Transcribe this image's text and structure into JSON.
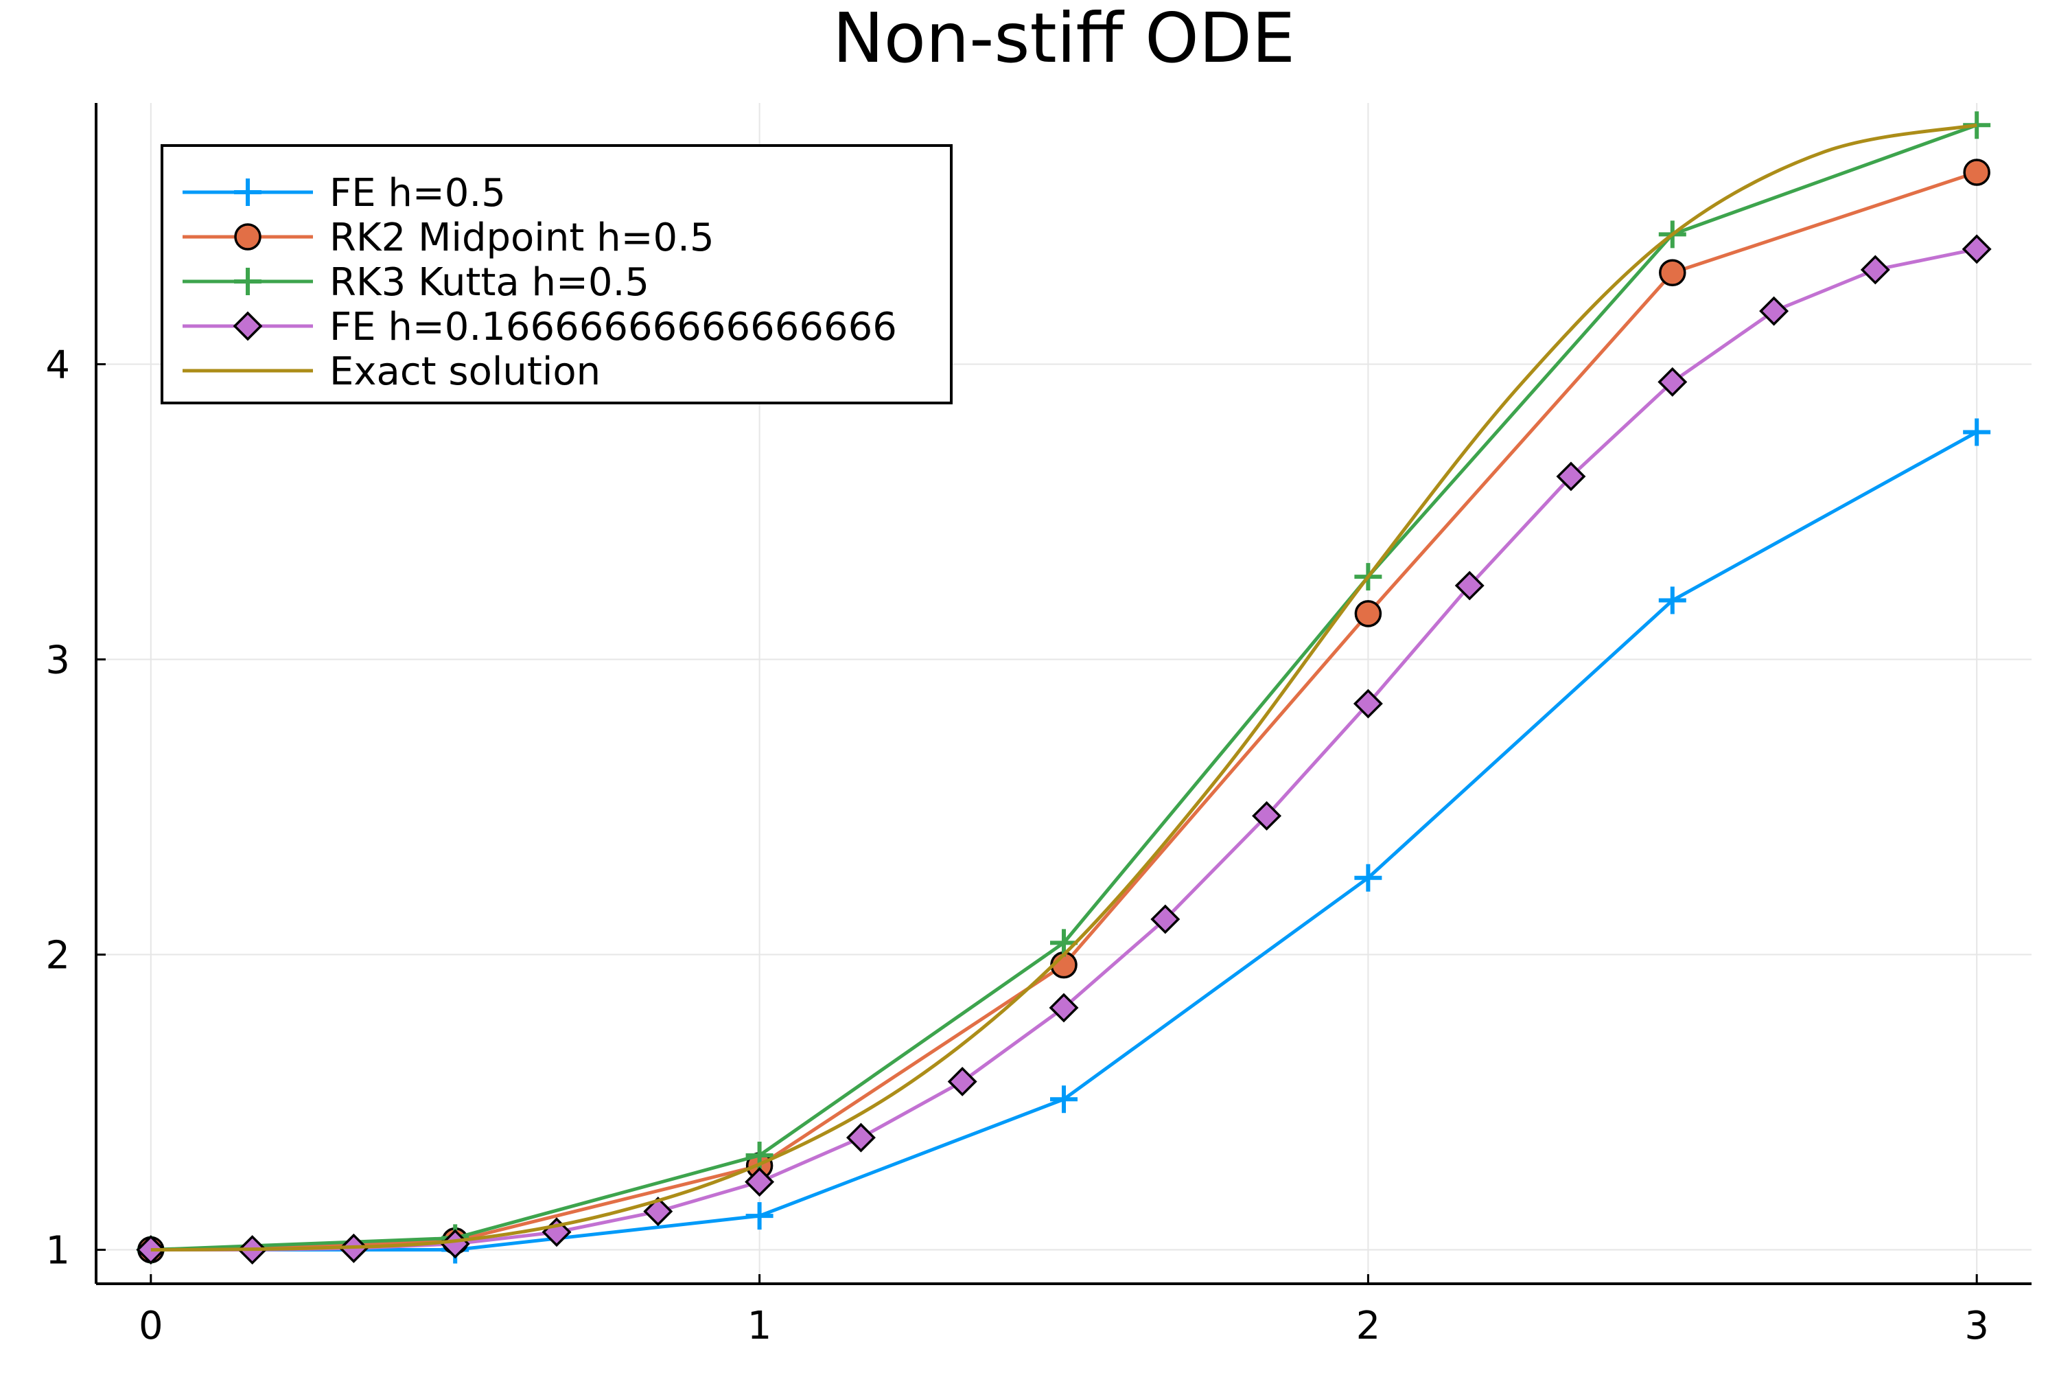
{
  "chart_data": {
    "type": "line",
    "title": "Non-stiff ODE",
    "xlabel": "",
    "ylabel": "",
    "xlim": [
      -0.09,
      3.09
    ],
    "ylim": [
      0.885,
      4.885
    ],
    "x_ticks": [
      "0",
      "1",
      "2",
      "3"
    ],
    "y_ticks": [
      "1",
      "2",
      "3",
      "4"
    ],
    "grid": true,
    "legend": "top-left",
    "series": [
      {
        "name": "FE h=0.5",
        "color": "#009af9",
        "marker": "cross",
        "x": [
          0,
          0.5,
          1.0,
          1.5,
          2.0,
          2.5,
          3.0
        ],
        "y": [
          1.0,
          1.0,
          1.115,
          1.51,
          2.26,
          3.2,
          3.77
        ]
      },
      {
        "name": "RK2 Midpoint h=0.5",
        "color": "#e26f46",
        "marker": "circle",
        "x": [
          0,
          0.5,
          1.0,
          1.5,
          2.0,
          2.5,
          3.0
        ],
        "y": [
          1.0,
          1.03,
          1.285,
          1.965,
          3.155,
          4.31,
          4.65
        ]
      },
      {
        "name": "RK3 Kutta h=0.5",
        "color": "#3da44d",
        "marker": "cross",
        "x": [
          0,
          0.5,
          1.0,
          1.5,
          2.0,
          2.5,
          3.0
        ],
        "y": [
          1.0,
          1.04,
          1.32,
          2.04,
          3.28,
          4.44,
          4.81
        ]
      },
      {
        "name": "FE h=0.16666666666666666",
        "color": "#c271d2",
        "marker": "diamond",
        "x": [
          0,
          0.1667,
          0.3333,
          0.5,
          0.6667,
          0.8333,
          1.0,
          1.1667,
          1.3333,
          1.5,
          1.6667,
          1.8333,
          2.0,
          2.1667,
          2.3333,
          2.5,
          2.6667,
          2.8333,
          3.0
        ],
        "y": [
          1.0,
          1.0,
          1.005,
          1.02,
          1.06,
          1.13,
          1.23,
          1.38,
          1.57,
          1.82,
          2.12,
          2.47,
          2.85,
          3.25,
          3.62,
          3.94,
          4.18,
          4.32,
          4.39
        ]
      },
      {
        "name": "Exact solution",
        "color": "#ac8d18",
        "marker": "none",
        "x": [
          0,
          0.25,
          0.5,
          0.75,
          1.0,
          1.25,
          1.5,
          1.75,
          2.0,
          2.25,
          2.5,
          2.75,
          3.0
        ],
        "y": [
          1.0,
          1.005,
          1.03,
          1.12,
          1.29,
          1.57,
          2.0,
          2.59,
          3.28,
          3.93,
          4.44,
          4.72,
          4.81
        ]
      }
    ]
  }
}
